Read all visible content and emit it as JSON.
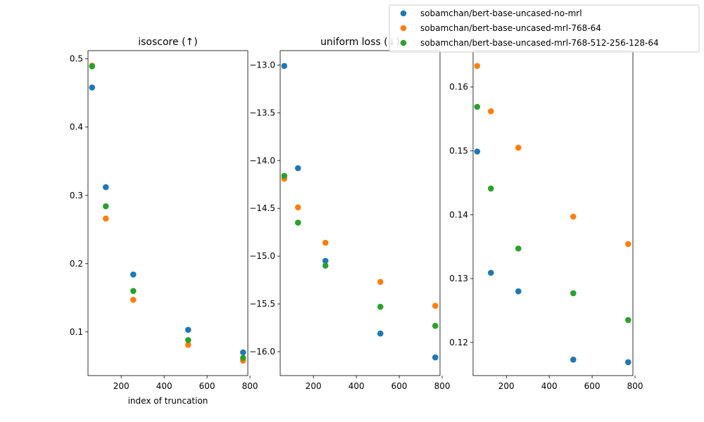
{
  "chart_data": [
    {
      "type": "scatter",
      "title": "isoscore (↑)",
      "xlabel": "index of truncation",
      "ylabel": "",
      "xlim": [
        45,
        790
      ],
      "ylim": [
        0.036,
        0.512
      ],
      "xticks": [
        200,
        400,
        600,
        800
      ],
      "yticks": [
        0.1,
        0.2,
        0.3,
        0.4,
        0.5
      ],
      "ytick_labels": [
        "0.1",
        "0.2",
        "0.3",
        "0.4",
        "0.5"
      ],
      "x": [
        64,
        128,
        256,
        512,
        768
      ],
      "series": [
        {
          "name": "sobamchan/bert-base-uncased-no-mrl",
          "color": "#1f77b4",
          "values": [
            0.458,
            0.312,
            0.184,
            0.103,
            0.07
          ]
        },
        {
          "name": "sobamchan/bert-base-uncased-mrl-768-64",
          "color": "#ff7f0e",
          "values": [
            0.49,
            0.266,
            0.147,
            0.081,
            0.058
          ]
        },
        {
          "name": "sobamchan/bert-base-uncased-mrl-768-512-256-128-64",
          "color": "#2ca02c",
          "values": [
            0.489,
            0.284,
            0.16,
            0.088,
            0.062
          ]
        }
      ],
      "grid": false
    },
    {
      "type": "scatter",
      "title": "uniform loss (↓)",
      "xlabel": "",
      "ylabel": "",
      "xlim": [
        45,
        790
      ],
      "ylim": [
        -16.25,
        -12.85
      ],
      "xticks": [
        200,
        400,
        600,
        800
      ],
      "yticks": [
        -13.0,
        -13.5,
        -14.0,
        -14.5,
        -15.0,
        -15.5,
        -16.0
      ],
      "ytick_labels": [
        "−13.0",
        "−13.5",
        "−14.0",
        "−14.5",
        "−15.0",
        "−15.5",
        "−16.0"
      ],
      "x": [
        64,
        128,
        256,
        512,
        768
      ],
      "series": [
        {
          "name": "sobamchan/bert-base-uncased-no-mrl",
          "color": "#1f77b4",
          "values": [
            -13.01,
            -14.08,
            -15.05,
            -15.81,
            -16.06
          ]
        },
        {
          "name": "sobamchan/bert-base-uncased-mrl-768-64",
          "color": "#ff7f0e",
          "values": [
            -14.19,
            -14.49,
            -14.86,
            -15.27,
            -15.52
          ]
        },
        {
          "name": "sobamchan/bert-base-uncased-mrl-768-512-256-128-64",
          "color": "#2ca02c",
          "values": [
            -14.16,
            -14.65,
            -15.1,
            -15.53,
            -15.73
          ]
        }
      ],
      "grid": false
    },
    {
      "type": "scatter",
      "title": "",
      "xlabel": "",
      "ylabel": "",
      "xlim": [
        45,
        790
      ],
      "ylim": [
        0.1148,
        0.1657
      ],
      "xticks": [
        200,
        400,
        600,
        800
      ],
      "yticks": [
        0.12,
        0.13,
        0.14,
        0.15,
        0.16
      ],
      "ytick_labels": [
        "0.12",
        "0.13",
        "0.14",
        "0.15",
        "0.16"
      ],
      "x": [
        64,
        128,
        256,
        512,
        768
      ],
      "series": [
        {
          "name": "sobamchan/bert-base-uncased-no-mrl",
          "color": "#1f77b4",
          "values": [
            0.1499,
            0.1309,
            0.128,
            0.1173,
            0.1169
          ]
        },
        {
          "name": "sobamchan/bert-base-uncased-mrl-768-64",
          "color": "#ff7f0e",
          "values": [
            0.1633,
            0.1562,
            0.1505,
            0.1397,
            0.1354
          ]
        },
        {
          "name": "sobamchan/bert-base-uncased-mrl-768-512-256-128-64",
          "color": "#2ca02c",
          "values": [
            0.1569,
            0.1441,
            0.1347,
            0.1277,
            0.1235
          ]
        }
      ],
      "grid": false
    }
  ],
  "legend": {
    "position": "top-right",
    "entries": [
      {
        "label": "sobamchan/bert-base-uncased-no-mrl",
        "color": "#1f77b4"
      },
      {
        "label": "sobamchan/bert-base-uncased-mrl-768-64",
        "color": "#ff7f0e"
      },
      {
        "label": "sobamchan/bert-base-uncased-mrl-768-512-256-128-64",
        "color": "#2ca02c"
      }
    ]
  }
}
